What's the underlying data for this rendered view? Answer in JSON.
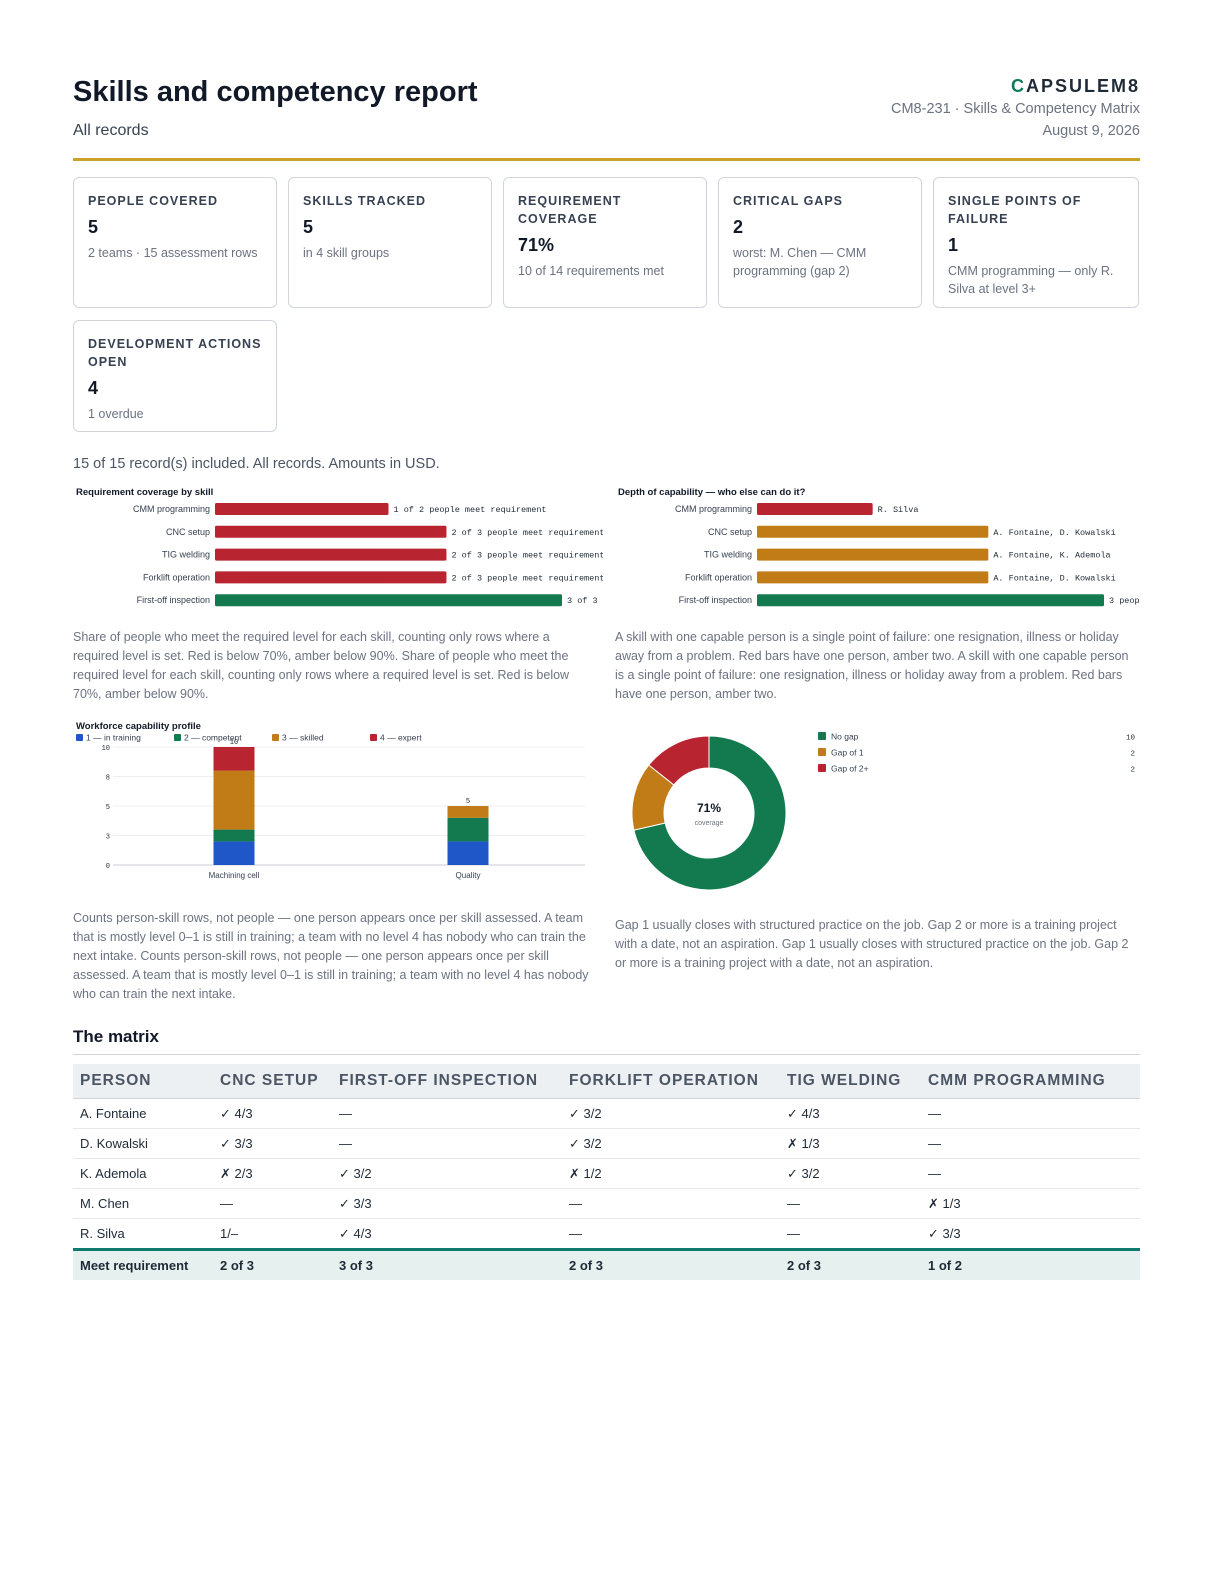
{
  "header": {
    "title": "Skills and competency report",
    "subtitle": "All records",
    "brand_initial": "C",
    "brand_rest": "APSULEM8",
    "doc_ref": "CM8-231 · Skills & Competency Matrix",
    "date": "August 9, 2026"
  },
  "kpis": [
    {
      "label": "People covered",
      "value": "5",
      "note": "2 teams · 15 assessment rows"
    },
    {
      "label": "Skills tracked",
      "value": "5",
      "note": "in 4 skill groups"
    },
    {
      "label": "Requirement coverage",
      "value": "71%",
      "note": "10 of 14 requirements met"
    },
    {
      "label": "Critical gaps",
      "value": "2",
      "note": "worst: M. Chen — CMM programming (gap 2)"
    },
    {
      "label": "Single points of failure",
      "value": "1",
      "note": "CMM programming — only R. Silva at level 3+"
    },
    {
      "label": "Development actions open",
      "value": "4",
      "note": "1 overdue"
    }
  ],
  "records_note": "15 of 15 record(s) included. All records. Amounts in USD.",
  "colors": {
    "red": "#b82430",
    "amber": "#c27c17",
    "green": "#127a4e",
    "blue": "#1f57c8"
  },
  "chart_data": [
    {
      "type": "bar",
      "orientation": "horizontal",
      "title": "Requirement coverage by skill",
      "categories": [
        "CMM programming",
        "CNC setup",
        "TIG welding",
        "Forklift operation",
        "First-off inspection"
      ],
      "values": [
        0.5,
        0.667,
        0.667,
        0.667,
        1.0
      ],
      "labels": [
        "1 of 2 people meet requirement",
        "2 of 3 people meet requirement",
        "2 of 3 people meet requirement",
        "2 of 3 people meet requirement",
        "3 of 3"
      ],
      "bar_colors": [
        "red",
        "red",
        "red",
        "red",
        "green"
      ],
      "xlim": [
        0,
        1
      ]
    },
    {
      "type": "bar",
      "orientation": "horizontal",
      "title": "Depth of capability — who else can do it?",
      "categories": [
        "CMM programming",
        "CNC setup",
        "TIG welding",
        "Forklift operation",
        "First-off inspection"
      ],
      "values": [
        1,
        2,
        2,
        2,
        3
      ],
      "labels": [
        "R. Silva",
        "A. Fontaine, D. Kowalski",
        "A. Fontaine, K. Ademola",
        "A. Fontaine, D. Kowalski",
        "3 peop"
      ],
      "bar_colors": [
        "red",
        "amber",
        "amber",
        "amber",
        "green"
      ],
      "xlim": [
        0,
        3
      ]
    },
    {
      "type": "bar",
      "stacked": true,
      "title": "Workforce capability profile",
      "categories": [
        "Machining cell",
        "Quality"
      ],
      "series": [
        {
          "name": "1 — in training",
          "color": "blue",
          "values": [
            2,
            2
          ]
        },
        {
          "name": "2 — competent",
          "color": "green",
          "values": [
            1,
            2
          ]
        },
        {
          "name": "3 — skilled",
          "color": "amber",
          "values": [
            5,
            1
          ]
        },
        {
          "name": "4 — expert",
          "color": "red",
          "values": [
            2,
            0
          ]
        }
      ],
      "totals": [
        "10",
        "5"
      ],
      "yticks": [
        "10",
        "8",
        "5",
        "3",
        "0"
      ],
      "ytick_values": [
        10,
        7.5,
        5,
        2.5,
        0
      ],
      "ylim": [
        0,
        10
      ]
    },
    {
      "type": "pie",
      "donut": true,
      "center_value": "71%",
      "center_label": "coverage",
      "series": [
        {
          "name": "No gap",
          "value": 10,
          "color": "green"
        },
        {
          "name": "Gap of 1",
          "value": 2,
          "color": "amber"
        },
        {
          "name": "Gap of 2+",
          "value": 2,
          "color": "red"
        }
      ]
    }
  ],
  "captions": {
    "coverage": "Share of people who meet the required level for each skill, counting only rows where a required level is set. Red is below 70%, amber below 90%. Share of people who meet the required level for each skill, counting only rows where a required level is set. Red is below 70%, amber below 90%.",
    "depth": "A skill with one capable person is a single point of failure: one resignation, illness or holiday away from a problem. Red bars have one person, amber two. A skill with one capable person is a single point of failure: one resignation, illness or holiday away from a problem. Red bars have one person, amber two.",
    "profile": "Counts person-skill rows, not people — one person appears once per skill assessed. A team that is mostly level 0–1 is still in training; a team with no level 4 has nobody who can train the next intake. Counts person-skill rows, not people — one person appears once per skill assessed. A team that is mostly level 0–1 is still in training; a team with no level 4 has nobody who can train the next intake.",
    "gaps": "Gap 1 usually closes with structured practice on the job. Gap 2 or more is a training project with a date, not an aspiration. Gap 1 usually closes with structured practice on the job. Gap 2 or more is a training project with a date, not an aspiration."
  },
  "matrix": {
    "title": "The matrix",
    "headers": [
      "Person",
      "CNC setup",
      "First-off inspection",
      "Forklift operation",
      "TIG welding",
      "CMM programming"
    ],
    "rows": [
      [
        "A. Fontaine",
        "✓ 4/3",
        "—",
        "✓ 3/2",
        "✓ 4/3",
        "—"
      ],
      [
        "D. Kowalski",
        "✓ 3/3",
        "—",
        "✓ 3/2",
        "✗ 1/3",
        "—"
      ],
      [
        "K. Ademola",
        "✗ 2/3",
        "✓ 3/2",
        "✗ 1/2",
        "✓ 3/2",
        "—"
      ],
      [
        "M. Chen",
        "—",
        "✓ 3/3",
        "—",
        "—",
        "✗ 1/3"
      ],
      [
        "R. Silva",
        "1/–",
        "✓ 4/3",
        "—",
        "—",
        "✓ 3/3"
      ]
    ],
    "footer": [
      "Meet requirement",
      "2 of 3",
      "3 of 3",
      "2 of 3",
      "2 of 3",
      "1 of 2"
    ]
  }
}
